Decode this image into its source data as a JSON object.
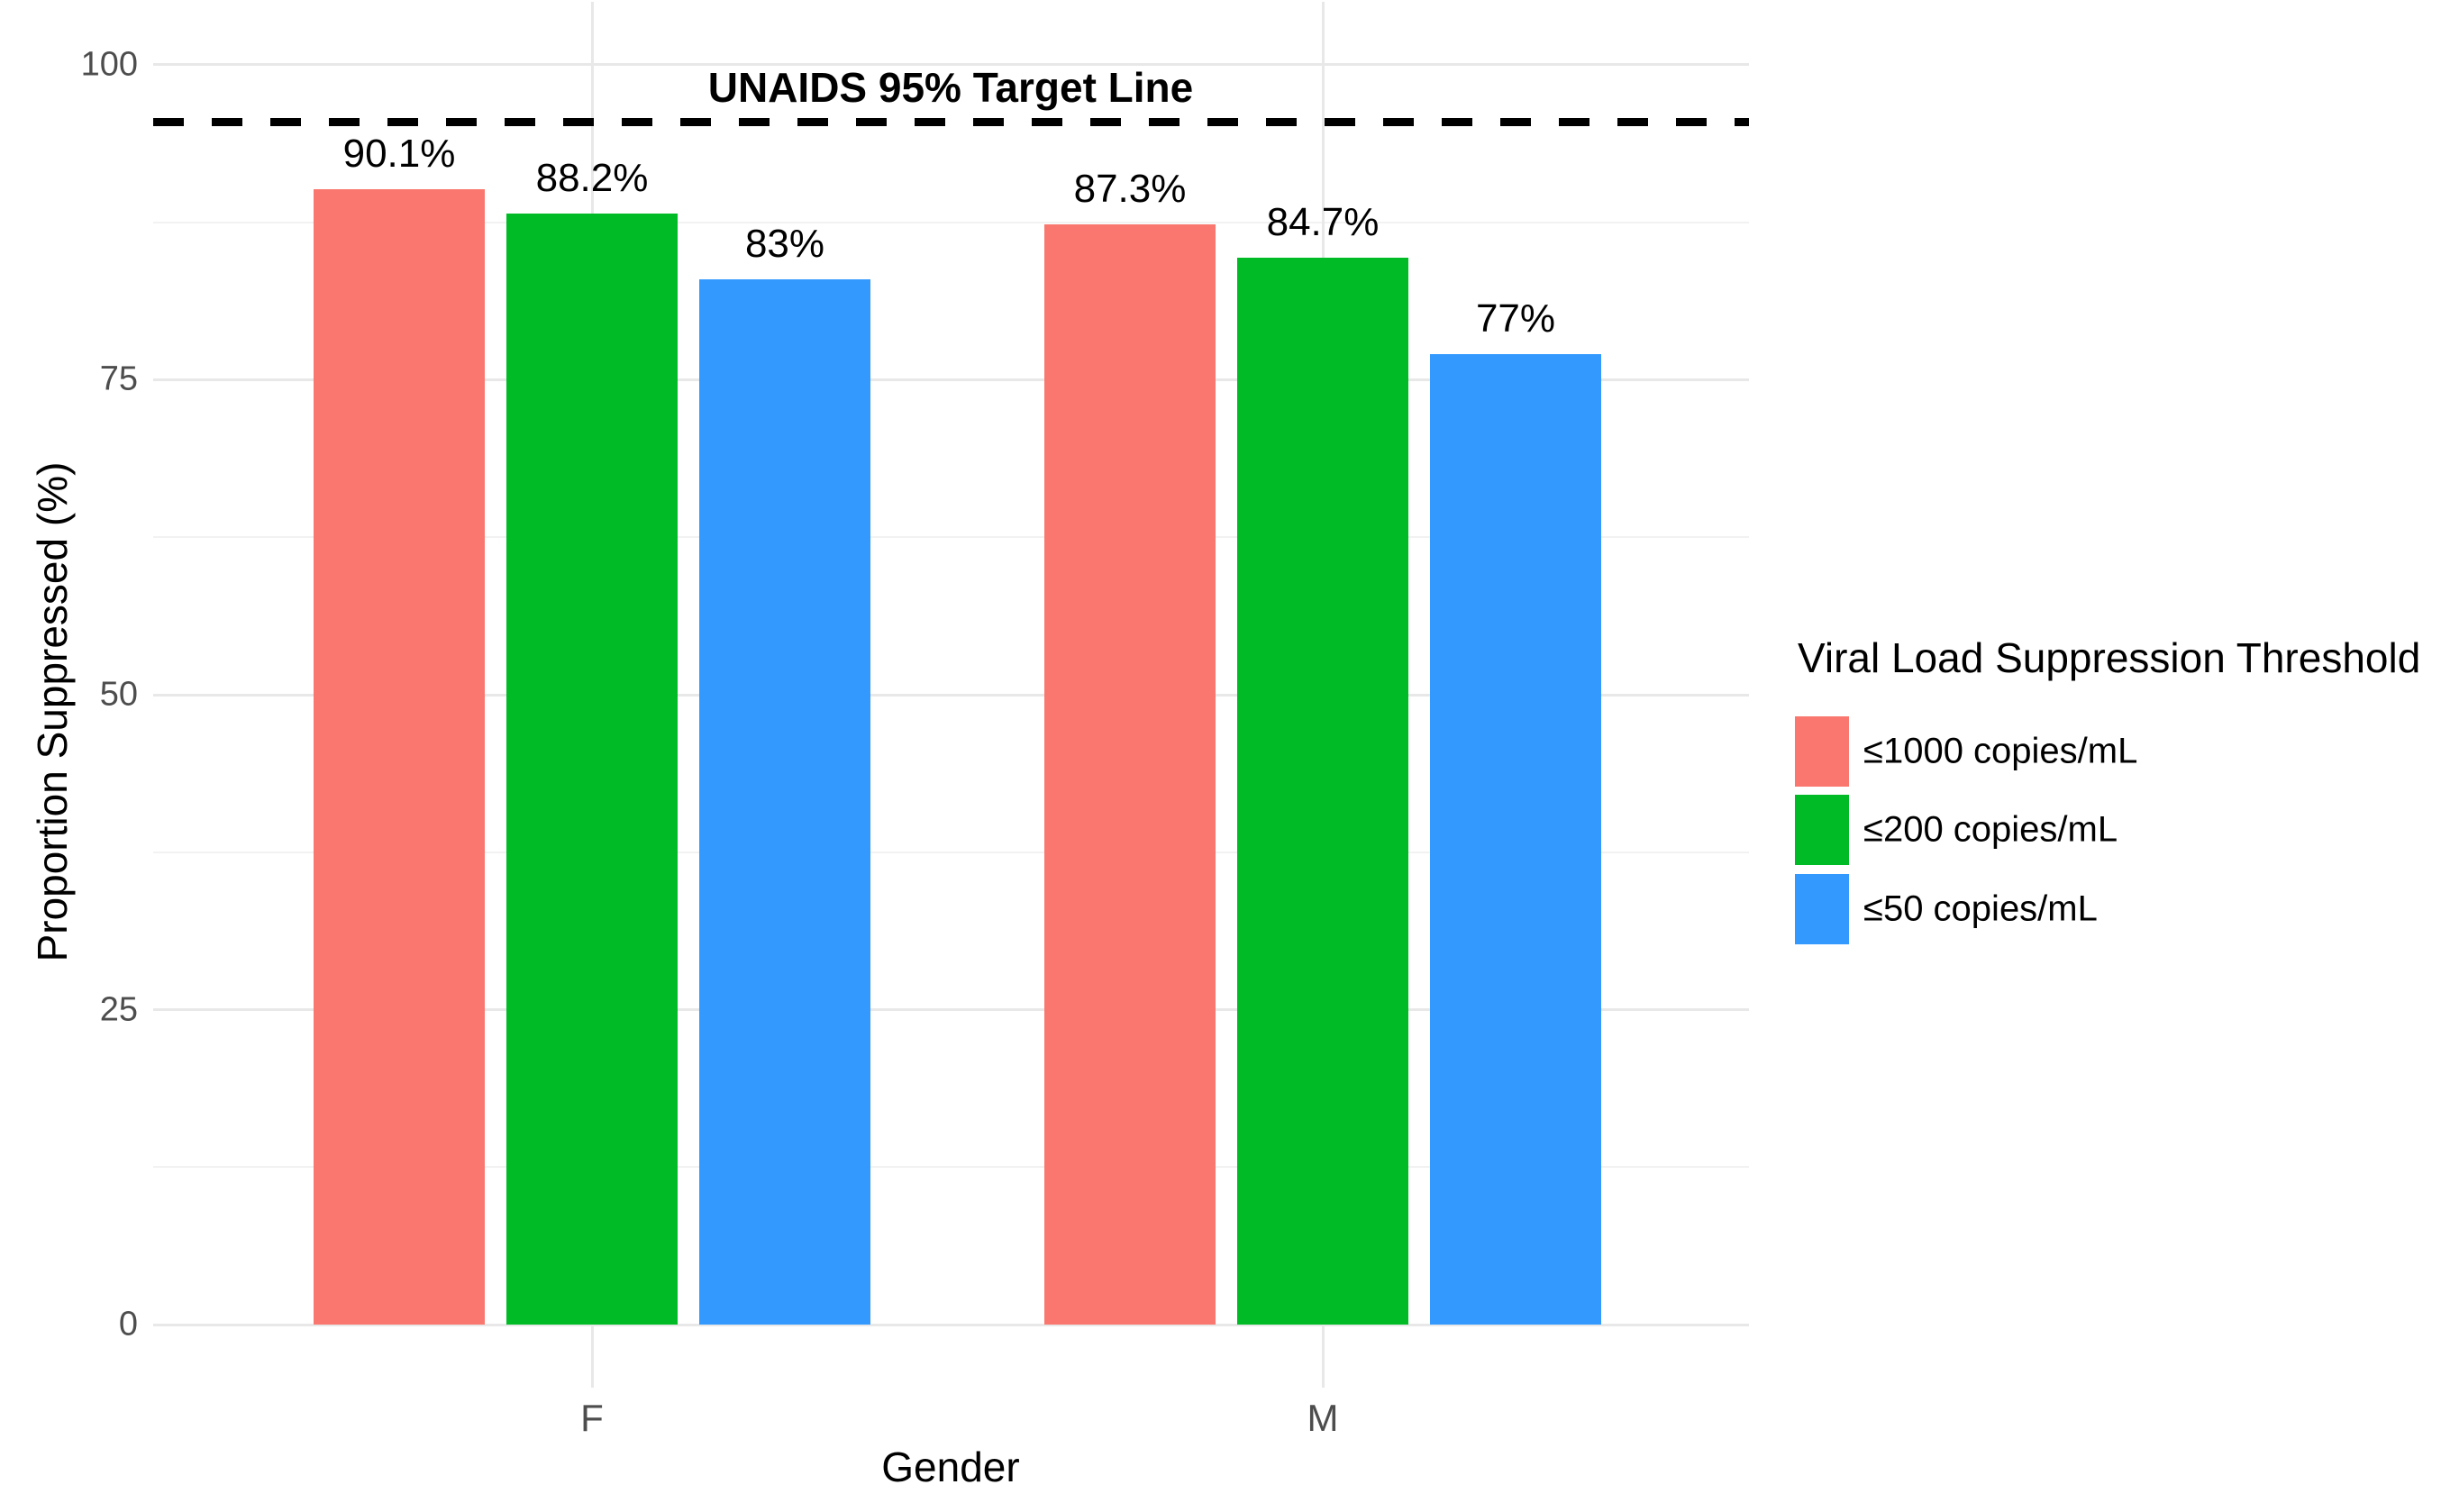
{
  "figure": {
    "background": "#FFFFFF"
  },
  "chart_data": {
    "type": "bar",
    "categories": [
      "F",
      "M"
    ],
    "series": [
      {
        "name": "≤1000 copies/mL",
        "color": "#F9776E",
        "values": [
          90.1,
          87.3
        ],
        "value_labels": [
          "90.1%",
          "87.3%"
        ]
      },
      {
        "name": "≤200 copies/mL",
        "color": "#00BB26",
        "values": [
          88.2,
          84.7
        ],
        "value_labels": [
          "88.2%",
          "84.7%"
        ]
      },
      {
        "name": "≤50 copies/mL",
        "color": "#3399FF",
        "values": [
          83,
          77
        ],
        "value_labels": [
          "83%",
          "77%"
        ]
      }
    ],
    "xlabel": "Gender",
    "ylabel": "Proportion Suppressed (%)",
    "ylim": [
      -5,
      105
    ],
    "y_major_ticks": [
      0,
      25,
      50,
      75,
      100
    ],
    "y_minor_ticks": [
      12.5,
      37.5,
      62.5,
      87.5
    ],
    "grid": {
      "major_color": "#E8E8E8",
      "minor_color": "#F2F2F2",
      "vertical_major": true
    },
    "reference_line": {
      "value": 95,
      "label": "UNAIDS 95% Target Line",
      "line_style": "dashed",
      "color": "#000000"
    },
    "legend": {
      "title": "Viral Load Suppression Threshold",
      "position": "right"
    },
    "style": {
      "axis_text_color": "#4D4D4D",
      "axis_title_color": "#000000",
      "value_label_color": "#000000",
      "legend_position": "right"
    }
  }
}
